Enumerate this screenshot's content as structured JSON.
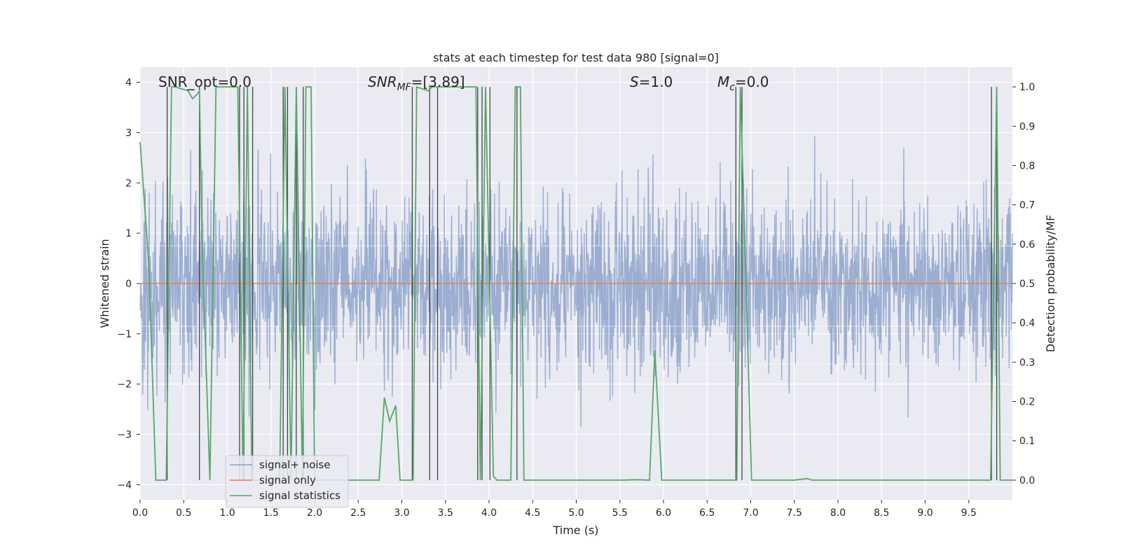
{
  "chart_data": {
    "type": "line",
    "title": "stats at each timestep for test data 980 [signal=0]",
    "xlabel": "Time (s)",
    "ylabel": "Whitened strain",
    "y2label": "Detection probability/MF",
    "xlim": [
      0,
      10
    ],
    "ylim": [
      -4.3,
      4.3
    ],
    "y2lim": [
      -0.05,
      1.05
    ],
    "xticks": [
      "0.0",
      "0.5",
      "1.0",
      "1.5",
      "2.0",
      "2.5",
      "3.0",
      "3.5",
      "4.0",
      "4.5",
      "5.0",
      "5.5",
      "6.0",
      "6.5",
      "7.0",
      "7.5",
      "8.0",
      "8.5",
      "9.0",
      "9.5"
    ],
    "yticks": [
      "4",
      "3",
      "2",
      "1",
      "0",
      "−1",
      "−2",
      "−3",
      "−4"
    ],
    "y2ticks": [
      "1.0",
      "0.9",
      "0.8",
      "0.7",
      "0.6",
      "0.5",
      "0.4",
      "0.3",
      "0.2",
      "0.1",
      "0.0"
    ],
    "grid": true,
    "legend_position": "lower-left",
    "annotations": {
      "snr_opt": "SNR_opt=0.0",
      "snr_mf_name": "SNR",
      "snr_mf_sub": "MF",
      "snr_mf_value": "=[3.89]",
      "s_name": "S",
      "s_value": "=1.0",
      "mc_name": "M",
      "mc_sub": "c",
      "mc_value": "=0.0"
    },
    "series": [
      {
        "name": "signal+ noise",
        "color": "#4c72b0",
        "description": "dense whitened noise trace, values roughly within −3.7 to 3.8"
      },
      {
        "name": "signal only",
        "color": "#dd8452",
        "value": 0.0
      },
      {
        "name": "signal statistics",
        "color": "#55a868",
        "axis": "right",
        "x": [
          0.0,
          0.1,
          0.18,
          0.3,
          0.36,
          0.4,
          0.55,
          0.6,
          0.65,
          0.68,
          0.71,
          0.8,
          0.87,
          1.12,
          1.18,
          1.23,
          1.28,
          1.38,
          1.6,
          1.66,
          1.73,
          1.79,
          1.86,
          1.9,
          1.96,
          2.0,
          2.05,
          2.5,
          2.74,
          2.8,
          2.86,
          2.93,
          2.98,
          3.13,
          3.17,
          3.3,
          3.35,
          3.5,
          3.85,
          3.9,
          3.96,
          4.05,
          4.09,
          4.25,
          4.3,
          4.36,
          4.4,
          5.0,
          5.5,
          5.7,
          5.84,
          5.9,
          5.98,
          6.05,
          6.3,
          6.5,
          6.84,
          6.88,
          6.94,
          7.01,
          7.5,
          7.65,
          7.7,
          8.0,
          9.0,
          9.75,
          9.82,
          9.86,
          10.0
        ],
        "y": [
          0.86,
          0.55,
          0.0,
          0.0,
          1.0,
          1.0,
          0.99,
          0.97,
          0.98,
          0.99,
          0.6,
          0.0,
          1.0,
          1.0,
          0.0,
          1.0,
          0.0,
          0.0,
          0.0,
          1.0,
          0.0,
          1.0,
          0.0,
          1.0,
          1.0,
          0.0,
          0.0,
          0.0,
          0.0,
          0.21,
          0.15,
          0.19,
          0.0,
          0.0,
          1.0,
          0.99,
          1.0,
          1.0,
          1.0,
          0.0,
          1.0,
          0.01,
          0.0,
          0.0,
          1.0,
          1.0,
          0.0,
          0.0,
          0.0,
          0.001,
          0.0,
          0.33,
          0.0,
          0.0,
          0.0,
          0.0,
          0.0,
          1.0,
          0.55,
          0.0,
          0.0,
          0.004,
          0.0,
          0.0,
          0.0,
          0.0,
          1.0,
          0.0,
          0.0
        ]
      }
    ],
    "detection_markers_x": [
      0.31,
      0.68,
      1.14,
      1.19,
      1.29,
      1.64,
      1.69,
      1.79,
      1.87,
      3.12,
      3.32,
      3.41,
      3.87,
      3.92,
      4.01,
      4.32,
      6.83,
      6.9,
      9.76,
      9.82
    ]
  }
}
